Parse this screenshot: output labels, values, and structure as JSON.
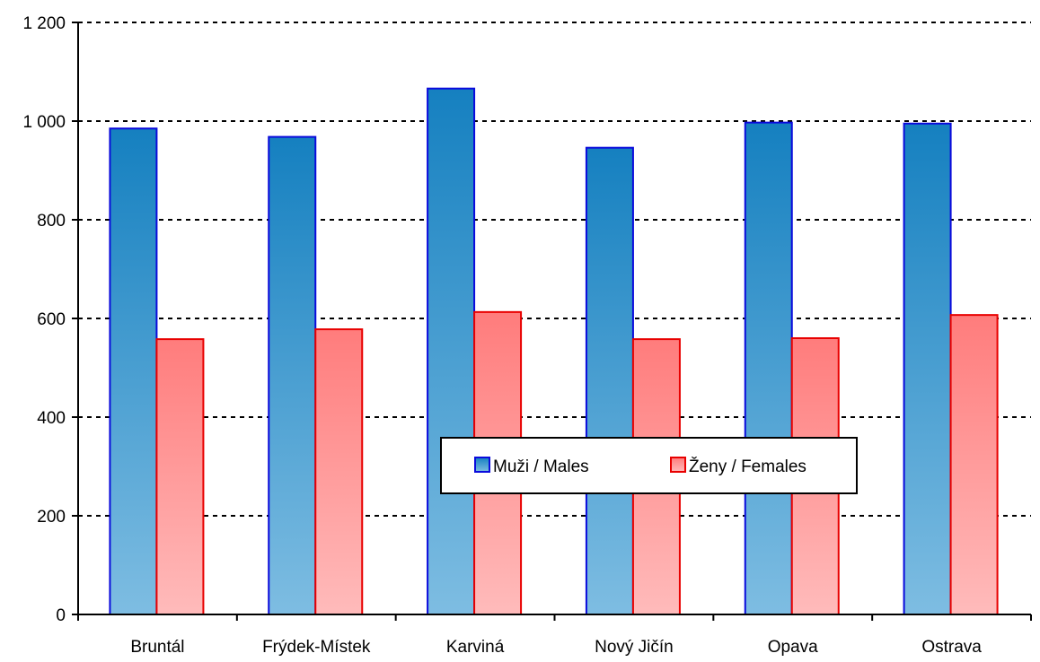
{
  "chart_data": {
    "type": "bar",
    "categories": [
      "Bruntál",
      "Frýdek-Místek",
      "Karviná",
      "Nový Jičín",
      "Opava",
      "Ostrava"
    ],
    "series": [
      {
        "name": "Muži / Males",
        "values": [
          985,
          968,
          1066,
          946,
          997,
          995
        ],
        "color_top": "#1580C0",
        "color_bottom": "#7EBDE2",
        "stroke": "#0A0ADC"
      },
      {
        "name": "Ženy / Females",
        "values": [
          558,
          578,
          613,
          558,
          560,
          607
        ],
        "color_top": "#FF7C7C",
        "color_bottom": "#FFBBBB",
        "stroke": "#E80000"
      }
    ],
    "ylim": [
      0,
      1200
    ],
    "yticks": [
      0,
      200,
      400,
      600,
      800,
      1000,
      1200
    ],
    "ytick_labels": [
      "0",
      "200",
      "400",
      "600",
      "800",
      "1 000",
      "1 200"
    ],
    "grid": true,
    "legend_position": "center-right"
  }
}
